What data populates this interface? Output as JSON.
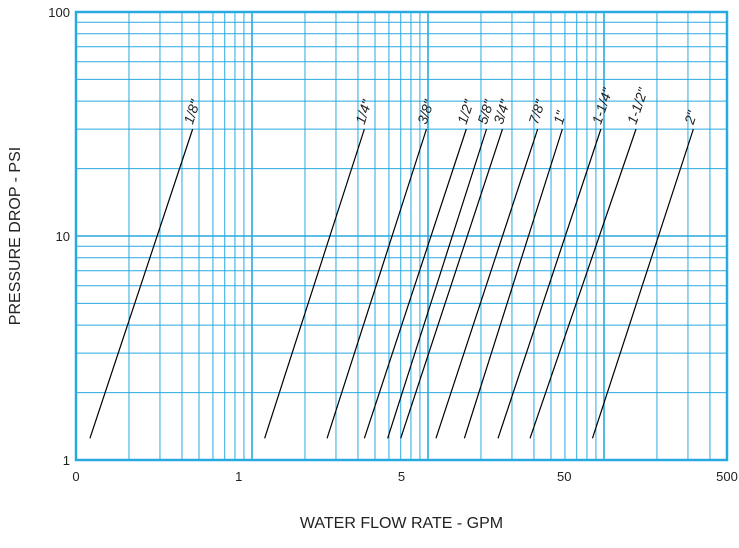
{
  "chart_data": {
    "type": "line",
    "title": "",
    "xlabel": "WATER FLOW RATE - GPM",
    "ylabel": "PRESSURE DROP - PSI",
    "x_scale": "log",
    "y_scale": "log",
    "xlim": [
      0.1,
      500
    ],
    "ylim": [
      1,
      100
    ],
    "x_tick_labels": [
      "0",
      "1",
      "5",
      "50",
      "500"
    ],
    "y_tick_labels": [
      "1",
      "10",
      "100"
    ],
    "grid": true,
    "grid_color": "#29a9e1",
    "line_color": "#000000",
    "series": [
      {
        "name": "1/8\"",
        "points": [
          [
            0.12,
            1.25
          ],
          [
            0.46,
            30
          ]
        ]
      },
      {
        "name": "1/4\"",
        "points": [
          [
            1.18,
            1.25
          ],
          [
            4.35,
            30
          ]
        ]
      },
      {
        "name": "3/8\"",
        "points": [
          [
            2.67,
            1.25
          ],
          [
            9.8,
            30
          ]
        ]
      },
      {
        "name": "1/2\"",
        "points": [
          [
            4.35,
            1.25
          ],
          [
            16.5,
            30
          ]
        ]
      },
      {
        "name": "5/8\"",
        "points": [
          [
            5.9,
            1.25
          ],
          [
            21.5,
            30
          ]
        ]
      },
      {
        "name": "3/4\"",
        "points": [
          [
            7.0,
            1.25
          ],
          [
            26.5,
            30
          ]
        ]
      },
      {
        "name": "7/8\"",
        "points": [
          [
            11.1,
            1.25
          ],
          [
            42,
            30
          ]
        ]
      },
      {
        "name": "1\"",
        "points": [
          [
            16.1,
            1.25
          ],
          [
            58,
            30
          ]
        ]
      },
      {
        "name": "1-1/4\"",
        "points": [
          [
            25,
            1.25
          ],
          [
            96,
            30
          ]
        ]
      },
      {
        "name": "1-1/2\"",
        "points": [
          [
            38,
            1.25
          ],
          [
            152,
            30
          ]
        ]
      },
      {
        "name": "2\"",
        "points": [
          [
            86,
            1.25
          ],
          [
            322,
            30
          ]
        ]
      }
    ]
  }
}
